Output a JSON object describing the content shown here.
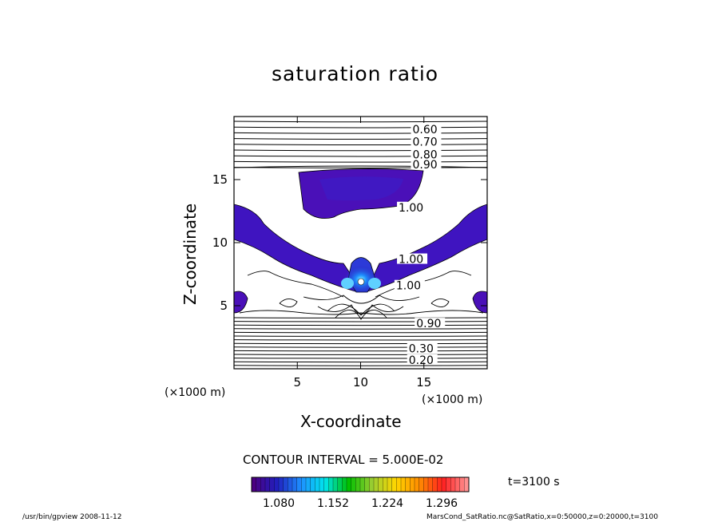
{
  "chart_data": {
    "type": "heatmap",
    "title": "saturation ratio",
    "xlabel": "X-coordinate",
    "ylabel": "Z-coordinate",
    "x_unit_label": "(×1000 m)",
    "y_unit_label": "(×1000 m)",
    "xlim": [
      0,
      20
    ],
    "ylim": [
      0,
      20
    ],
    "x_ticks": [
      5,
      10,
      15
    ],
    "y_ticks": [
      5,
      10,
      15
    ],
    "contour_labels": [
      {
        "text": "0.60",
        "x": 14.1,
        "z": 19.0
      },
      {
        "text": "0.70",
        "x": 14.1,
        "z": 18.0
      },
      {
        "text": "0.80",
        "x": 14.1,
        "z": 17.0
      },
      {
        "text": "0.90",
        "x": 14.1,
        "z": 16.2
      },
      {
        "text": "1.00",
        "x": 13.0,
        "z": 12.8
      },
      {
        "text": "1.00",
        "x": 13.0,
        "z": 8.7
      },
      {
        "text": "1.00",
        "x": 12.8,
        "z": 6.6
      },
      {
        "text": "0.90",
        "x": 14.4,
        "z": 3.6
      },
      {
        "text": "0.30",
        "x": 13.8,
        "z": 1.6
      },
      {
        "text": "0.20",
        "x": 13.8,
        "z": 0.7
      }
    ],
    "contour_interval": "CONTOUR INTERVAL = 5.000E-02",
    "colorbar": {
      "ticks": [
        "1.080",
        "1.152",
        "1.224",
        "1.296"
      ],
      "range": [
        1.044,
        1.332
      ],
      "colors": [
        "#4b0082",
        "#2020c0",
        "#1e90ff",
        "#00e5ee",
        "#00c000",
        "#9acd32",
        "#ffd700",
        "#ff8c00",
        "#ff2020",
        "#ff9090"
      ]
    },
    "time_label": "t=3100 s",
    "grid": false
  },
  "footer": {
    "left": "/usr/bin/gpview   2008-11-12",
    "right": "MarsCond_SatRatio.nc@SatRatio,x=0:50000,z=0:20000,t=3100"
  }
}
